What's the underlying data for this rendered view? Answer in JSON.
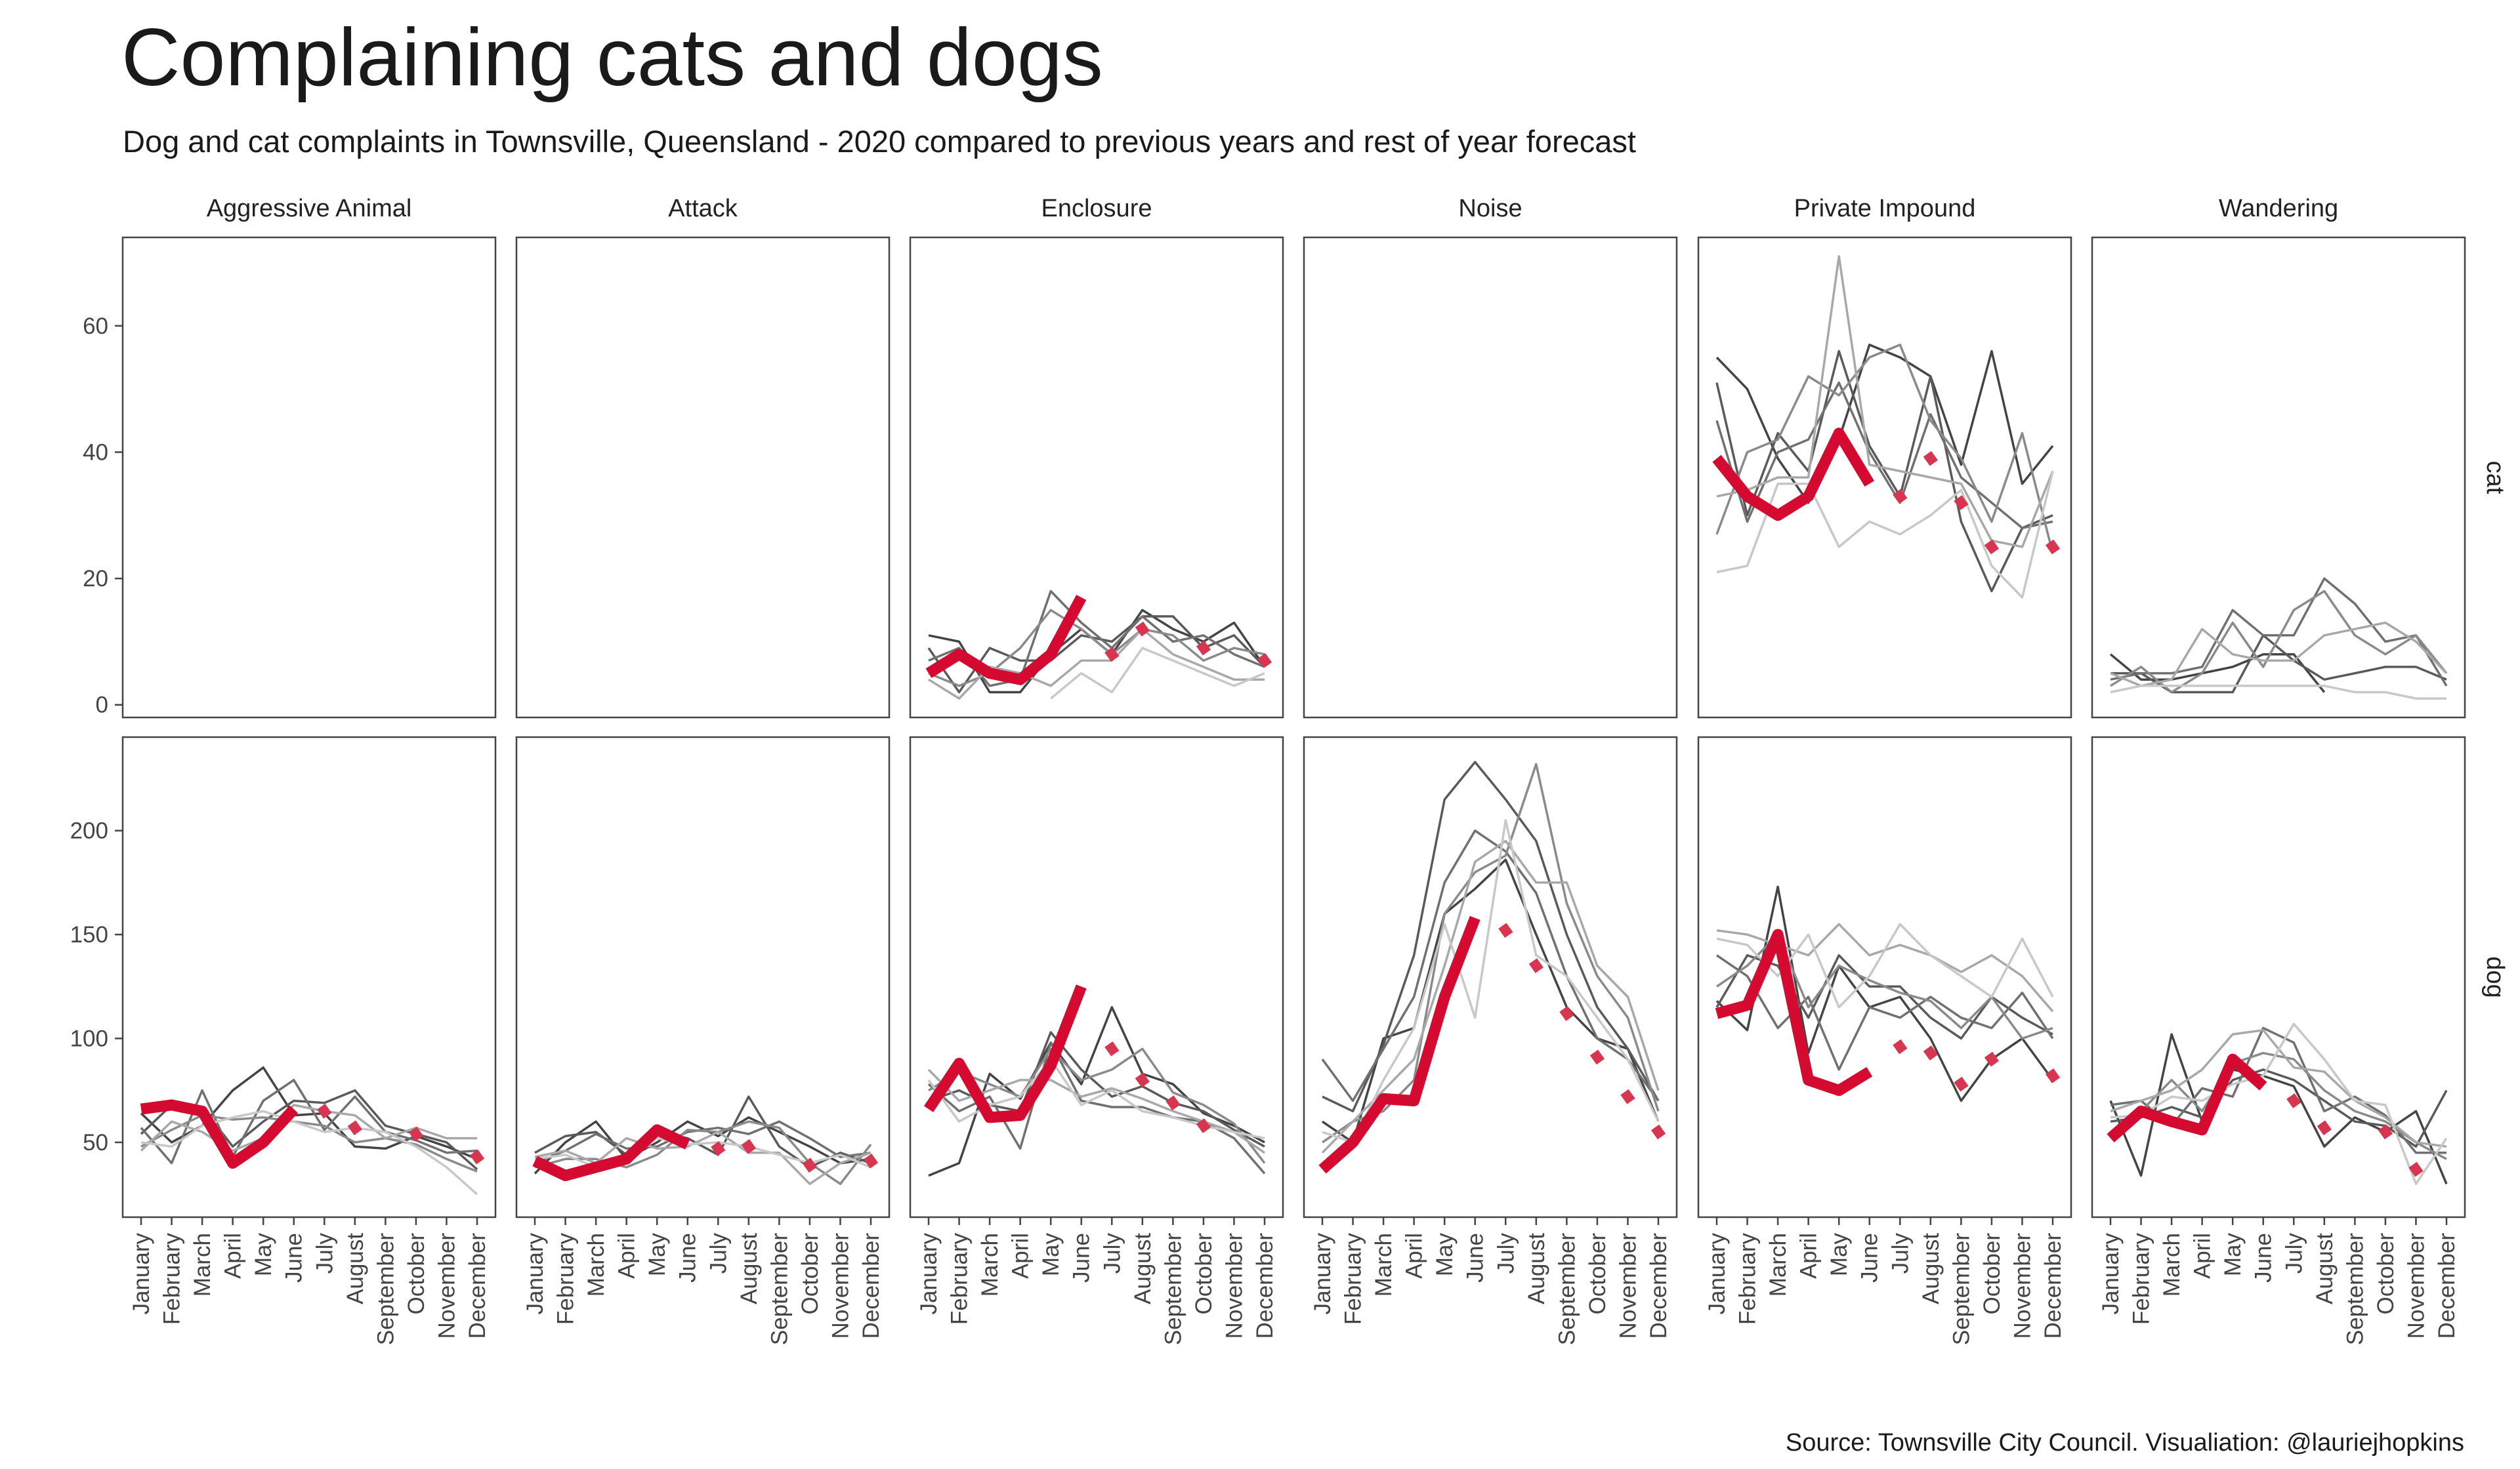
{
  "title": "Complaining cats and dogs",
  "subtitle": "Dog and cat complaints in Townsville, Queensland - 2020 compared to previous years and rest of year forecast",
  "caption": "Source: Townsville City Council. Visualiation: @lauriejhopkins",
  "colors": {
    "current_year": "#d50a30",
    "forecast": "#d83550",
    "history": [
      "#444444",
      "#5a5a5a",
      "#707070",
      "#8a8a8a",
      "#a8a8a8",
      "#c8c8c8",
      "#dddddd"
    ]
  },
  "chart_data": {
    "type": "line",
    "facet_columns": [
      "Aggressive Animal",
      "Attack",
      "Enclosure",
      "Noise",
      "Private Impound",
      "Wandering"
    ],
    "facet_rows": [
      "cat",
      "dog"
    ],
    "months": [
      "January",
      "February",
      "March",
      "April",
      "May",
      "June",
      "July",
      "August",
      "September",
      "October",
      "November",
      "December"
    ],
    "y_scales": {
      "cat": {
        "ylim": [
          -2,
          74
        ],
        "ticks": [
          0,
          20,
          40,
          60
        ]
      },
      "dog": {
        "ylim": [
          14,
          245
        ],
        "ticks": [
          50,
          100,
          150,
          200
        ]
      }
    },
    "grid": false,
    "panels": [
      {
        "column": "Enclosure",
        "row": "cat",
        "current": [
          5,
          8,
          5,
          4,
          8,
          17
        ],
        "forecast": [
          null,
          null,
          null,
          null,
          null,
          null,
          8,
          12,
          null,
          9,
          null,
          7
        ],
        "history": [
          [
            11,
            10,
            2,
            2,
            8,
            12,
            8,
            15,
            12,
            10,
            13,
            6
          ],
          [
            9,
            2,
            9,
            7,
            7,
            11,
            10,
            14,
            14,
            9,
            11,
            6
          ],
          [
            7,
            9,
            3,
            4,
            18,
            13,
            9,
            14,
            10,
            11,
            8,
            6
          ],
          [
            5,
            3,
            5,
            9,
            15,
            12,
            8,
            12,
            11,
            7,
            9,
            8
          ],
          [
            4,
            1,
            6,
            5,
            3,
            7,
            7,
            12,
            8,
            6,
            4,
            4
          ],
          [
            null,
            null,
            null,
            null,
            1,
            5,
            2,
            9,
            7,
            5,
            3,
            5
          ]
        ]
      },
      {
        "column": "Private Impound",
        "row": "cat",
        "current": [
          39,
          33,
          30,
          33,
          43,
          35
        ],
        "forecast": [
          null,
          null,
          null,
          null,
          null,
          null,
          33,
          39,
          32,
          25,
          null,
          25
        ],
        "history": [
          [
            55,
            50,
            39,
            32,
            42,
            57,
            55,
            52,
            38,
            56,
            35,
            41
          ],
          [
            51,
            30,
            43,
            37,
            56,
            41,
            33,
            52,
            29,
            18,
            28,
            30
          ],
          [
            45,
            29,
            40,
            42,
            51,
            40,
            32,
            46,
            36,
            32,
            28,
            29
          ],
          [
            27,
            40,
            42,
            52,
            49,
            55,
            57,
            45,
            39,
            29,
            43,
            24
          ],
          [
            33,
            34,
            36,
            36,
            71,
            38,
            37,
            36,
            35,
            26,
            25,
            37
          ],
          [
            21,
            22,
            35,
            35,
            25,
            29,
            27,
            30,
            34,
            22,
            17,
            37
          ]
        ]
      },
      {
        "column": "Wandering",
        "row": "cat",
        "current": [],
        "forecast": [],
        "history": [
          [
            8,
            4,
            4,
            5,
            6,
            8,
            8,
            2,
            null,
            null,
            null,
            null
          ],
          [
            5,
            5,
            2,
            2,
            2,
            11,
            7,
            4,
            5,
            6,
            6,
            4
          ],
          [
            4,
            5,
            5,
            6,
            15,
            11,
            11,
            20,
            16,
            10,
            11,
            3
          ],
          [
            3,
            6,
            2,
            5,
            13,
            6,
            15,
            18,
            11,
            8,
            11,
            5
          ],
          [
            5,
            3,
            4,
            12,
            8,
            7,
            7,
            11,
            12,
            13,
            10,
            5
          ],
          [
            2,
            3,
            3,
            3,
            3,
            3,
            3,
            3,
            2,
            2,
            1,
            1
          ]
        ]
      },
      {
        "column": "Aggressive Animal",
        "row": "dog",
        "current": [
          66,
          68,
          65,
          40,
          50,
          66
        ],
        "forecast": [
          null,
          null,
          null,
          null,
          null,
          null,
          65,
          57,
          null,
          54,
          null,
          43
        ],
        "history": [
          [
            64,
            50,
            58,
            75,
            86,
            63,
            64,
            48,
            47,
            53,
            48,
            42
          ],
          [
            54,
            68,
            67,
            48,
            60,
            70,
            69,
            75,
            58,
            54,
            50,
            37
          ],
          [
            57,
            40,
            75,
            43,
            70,
            80,
            56,
            72,
            55,
            51,
            45,
            46
          ],
          [
            48,
            56,
            63,
            61,
            62,
            60,
            58,
            50,
            52,
            49,
            42,
            36
          ],
          [
            46,
            60,
            55,
            46,
            52,
            68,
            65,
            63,
            52,
            57,
            52,
            52
          ],
          [
            50,
            48,
            58,
            62,
            65,
            60,
            55,
            57,
            55,
            48,
            38,
            25
          ]
        ]
      },
      {
        "column": "Attack",
        "row": "dog",
        "current": [
          41,
          34,
          38,
          42,
          56,
          49
        ],
        "forecast": [
          null,
          null,
          null,
          null,
          null,
          null,
          47,
          48,
          null,
          39,
          null,
          41
        ],
        "history": [
          [
            35,
            50,
            60,
            42,
            50,
            60,
            53,
            62,
            55,
            48,
            40,
            42
          ],
          [
            45,
            53,
            55,
            44,
            55,
            52,
            44,
            72,
            48,
            38,
            45,
            40
          ],
          [
            40,
            46,
            54,
            47,
            48,
            55,
            57,
            54,
            60,
            52,
            43,
            45
          ],
          [
            38,
            42,
            42,
            38,
            44,
            56,
            55,
            60,
            57,
            40,
            30,
            49
          ],
          [
            43,
            46,
            40,
            52,
            47,
            48,
            55,
            45,
            45,
            30,
            40,
            45
          ],
          [
            42,
            44,
            38,
            44,
            52,
            49,
            50,
            48,
            44,
            40,
            44,
            38
          ]
        ]
      },
      {
        "column": "Enclosure",
        "row": "dog",
        "current": [
          66,
          88,
          62,
          63,
          87,
          125
        ],
        "forecast": [
          null,
          null,
          null,
          null,
          null,
          null,
          95,
          80,
          69,
          58,
          null,
          null
        ],
        "history": [
          [
            34,
            40,
            83,
            71,
            98,
            78,
            115,
            83,
            78,
            64,
            58,
            50
          ],
          [
            70,
            75,
            68,
            65,
            103,
            85,
            72,
            77,
            69,
            65,
            56,
            48
          ],
          [
            78,
            65,
            72,
            47,
            98,
            70,
            67,
            67,
            62,
            60,
            52,
            35
          ],
          [
            75,
            84,
            78,
            72,
            95,
            80,
            85,
            95,
            74,
            68,
            59,
            40
          ],
          [
            85,
            70,
            75,
            80,
            80,
            72,
            76,
            71,
            65,
            60,
            55,
            45
          ],
          [
            80,
            60,
            68,
            72,
            90,
            68,
            75,
            65,
            62,
            58,
            55,
            52
          ]
        ]
      },
      {
        "column": "Noise",
        "row": "dog",
        "current": [
          37,
          50,
          71,
          70,
          120,
          158
        ],
        "forecast": [
          null,
          null,
          null,
          null,
          null,
          null,
          152,
          135,
          112,
          91,
          72,
          55
        ],
        "history": [
          [
            60,
            50,
            100,
            105,
            160,
            172,
            186,
            150,
            115,
            100,
            95,
            60
          ],
          [
            72,
            65,
            97,
            140,
            215,
            233,
            215,
            195,
            150,
            115,
            95,
            70
          ],
          [
            90,
            70,
            95,
            120,
            175,
            200,
            190,
            170,
            130,
            100,
            90,
            70
          ],
          [
            50,
            60,
            65,
            80,
            160,
            180,
            188,
            232,
            165,
            130,
            110,
            65
          ],
          [
            45,
            60,
            75,
            90,
            135,
            185,
            195,
            175,
            175,
            135,
            120,
            75
          ],
          [
            55,
            50,
            80,
            105,
            155,
            110,
            205,
            140,
            130,
            110,
            90,
            60
          ]
        ]
      },
      {
        "column": "Private Impound",
        "row": "dog",
        "current": [
          112,
          116,
          150,
          80,
          75,
          84
        ],
        "forecast": [
          null,
          null,
          null,
          null,
          null,
          null,
          96,
          93,
          78,
          90,
          null,
          82
        ],
        "history": [
          [
            118,
            104,
            173,
            93,
            135,
            115,
            120,
            100,
            70,
            90,
            100,
            80
          ],
          [
            115,
            140,
            135,
            110,
            140,
            125,
            125,
            110,
            100,
            120,
            110,
            102
          ],
          [
            140,
            130,
            105,
            120,
            85,
            115,
            110,
            120,
            110,
            105,
            122,
            100
          ],
          [
            125,
            135,
            150,
            115,
            135,
            128,
            122,
            118,
            105,
            120,
            100,
            105
          ],
          [
            152,
            150,
            145,
            140,
            155,
            140,
            145,
            140,
            132,
            140,
            130,
            113
          ],
          [
            148,
            145,
            130,
            150,
            115,
            130,
            155,
            140,
            130,
            120,
            148,
            120
          ]
        ]
      },
      {
        "column": "Wandering",
        "row": "dog",
        "current": [
          52,
          65,
          60,
          56,
          90,
          77
        ],
        "forecast": [
          null,
          null,
          null,
          null,
          null,
          null,
          70,
          57,
          null,
          55,
          37,
          null
        ],
        "history": [
          [
            70,
            34,
            102,
            60,
            85,
            82,
            77,
            48,
            62,
            55,
            65,
            30
          ],
          [
            60,
            62,
            67,
            62,
            80,
            85,
            80,
            70,
            60,
            58,
            48,
            75
          ],
          [
            68,
            70,
            58,
            76,
            72,
            105,
            98,
            65,
            72,
            63,
            45,
            45
          ],
          [
            55,
            65,
            80,
            65,
            88,
            93,
            90,
            75,
            65,
            60,
            50,
            42
          ],
          [
            65,
            70,
            75,
            85,
            102,
            104,
            86,
            84,
            70,
            62,
            50,
            48
          ],
          [
            62,
            63,
            72,
            70,
            78,
            82,
            107,
            90,
            70,
            68,
            30,
            52
          ]
        ]
      }
    ]
  }
}
